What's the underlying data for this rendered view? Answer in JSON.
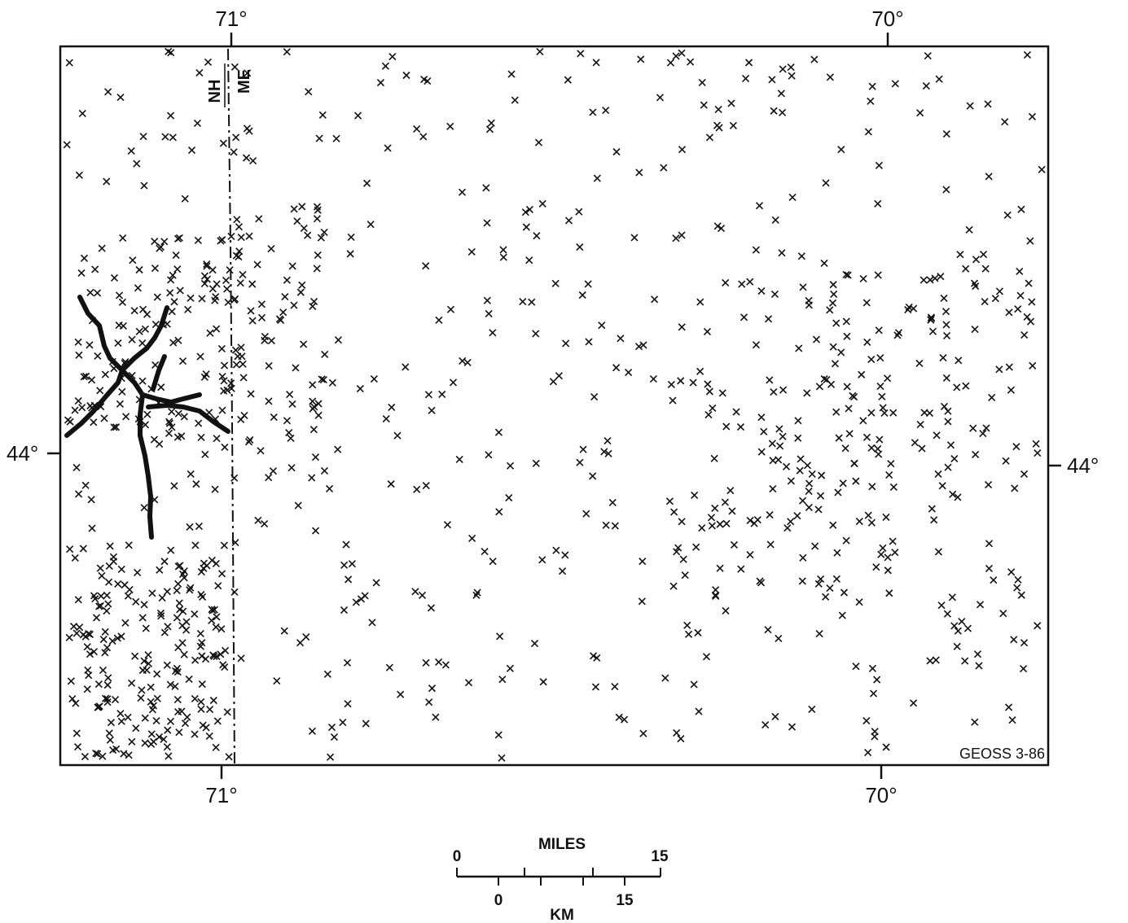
{
  "graticule": {
    "longitude_labels": [
      "71°",
      "70°"
    ],
    "latitude_labels": [
      "44°"
    ]
  },
  "boundary": {
    "west_state": "NH",
    "east_state": "ME"
  },
  "credit": "GEOSS 3-86",
  "scale_bar": {
    "miles_title": "MILES",
    "miles_start": "0",
    "miles_end": "15",
    "km_title": "KM",
    "km_start": "0",
    "km_end": "15"
  },
  "features": {
    "marker": "x-icon",
    "thick_line": "drainage-network"
  }
}
